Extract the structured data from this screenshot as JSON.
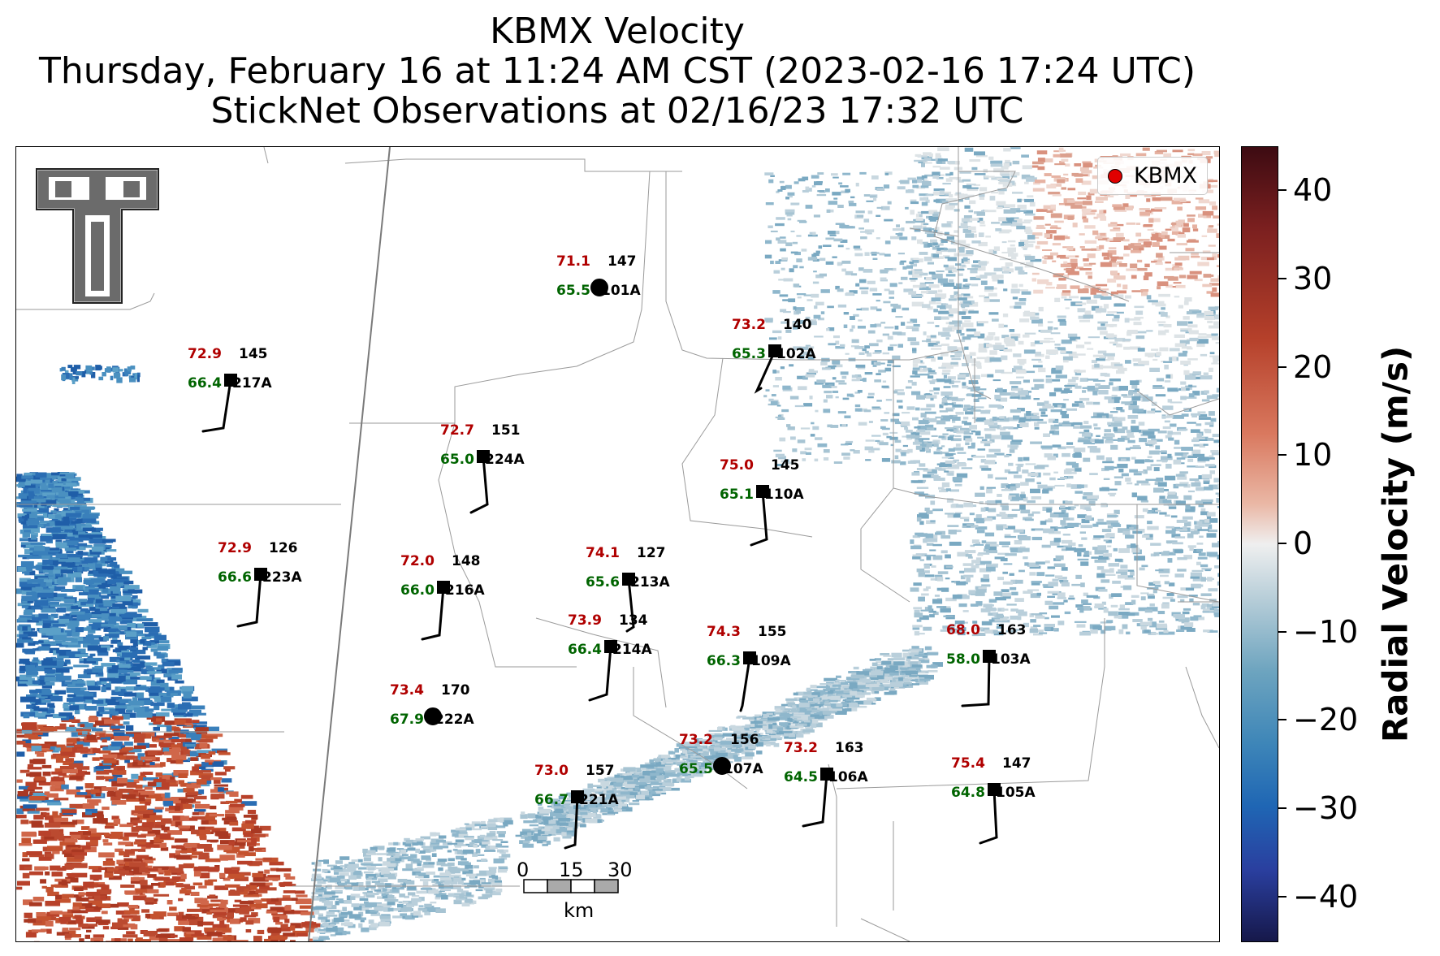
{
  "title": {
    "line1": "KBMX Velocity",
    "line2": "Thursday, February 16 at 11:24 AM CST (2023-02-16 17:24 UTC)",
    "line3": "StickNet Observations at 02/16/23 17:32 UTC"
  },
  "legend": {
    "label": "KBMX",
    "marker_color": "#e00000"
  },
  "colorbar": {
    "label": "Radial Velocity (m/s)",
    "ticks": [
      "40",
      "30",
      "20",
      "10",
      "0",
      "−10",
      "−20",
      "−30",
      "−40"
    ],
    "range": [
      -45,
      45
    ]
  },
  "scalebar": {
    "labels": [
      "0",
      "15",
      "30"
    ],
    "unit": "km"
  },
  "stations": [
    {
      "id": "101A",
      "temp": "71.1",
      "dew": "65.5",
      "pres": "147",
      "marker": "circle"
    },
    {
      "id": "102A",
      "temp": "73.2",
      "dew": "65.3",
      "pres": "140",
      "marker": "square"
    },
    {
      "id": "217A",
      "temp": "72.9",
      "dew": "66.4",
      "pres": "145",
      "marker": "square"
    },
    {
      "id": "224A",
      "temp": "72.7",
      "dew": "65.0",
      "pres": "151",
      "marker": "square"
    },
    {
      "id": "110A",
      "temp": "75.0",
      "dew": "65.1",
      "pres": "145",
      "marker": "square"
    },
    {
      "id": "223A",
      "temp": "72.9",
      "dew": "66.6",
      "pres": "126",
      "marker": "square"
    },
    {
      "id": "216A",
      "temp": "72.0",
      "dew": "66.0",
      "pres": "148",
      "marker": "square"
    },
    {
      "id": "213A",
      "temp": "74.1",
      "dew": "65.6",
      "pres": "127",
      "marker": "square"
    },
    {
      "id": "214A",
      "temp": "73.9",
      "dew": "66.4",
      "pres": "134",
      "marker": "square"
    },
    {
      "id": "109A",
      "temp": "74.3",
      "dew": "66.3",
      "pres": "155",
      "marker": "square"
    },
    {
      "id": "103A",
      "temp": "68.0",
      "dew": "58.0",
      "pres": "163",
      "marker": "square"
    },
    {
      "id": "222A",
      "temp": "73.4",
      "dew": "67.9",
      "pres": "170",
      "marker": "circle"
    },
    {
      "id": "107A",
      "temp": "73.2",
      "dew": "65.5",
      "pres": "156",
      "marker": "circle"
    },
    {
      "id": "106A",
      "temp": "73.2",
      "dew": "64.5",
      "pres": "163",
      "marker": "square"
    },
    {
      "id": "221A",
      "temp": "73.0",
      "dew": "66.7",
      "pres": "157",
      "marker": "square"
    },
    {
      "id": "105A",
      "temp": "75.4",
      "dew": "64.8",
      "pres": "147",
      "marker": "square"
    }
  ]
}
